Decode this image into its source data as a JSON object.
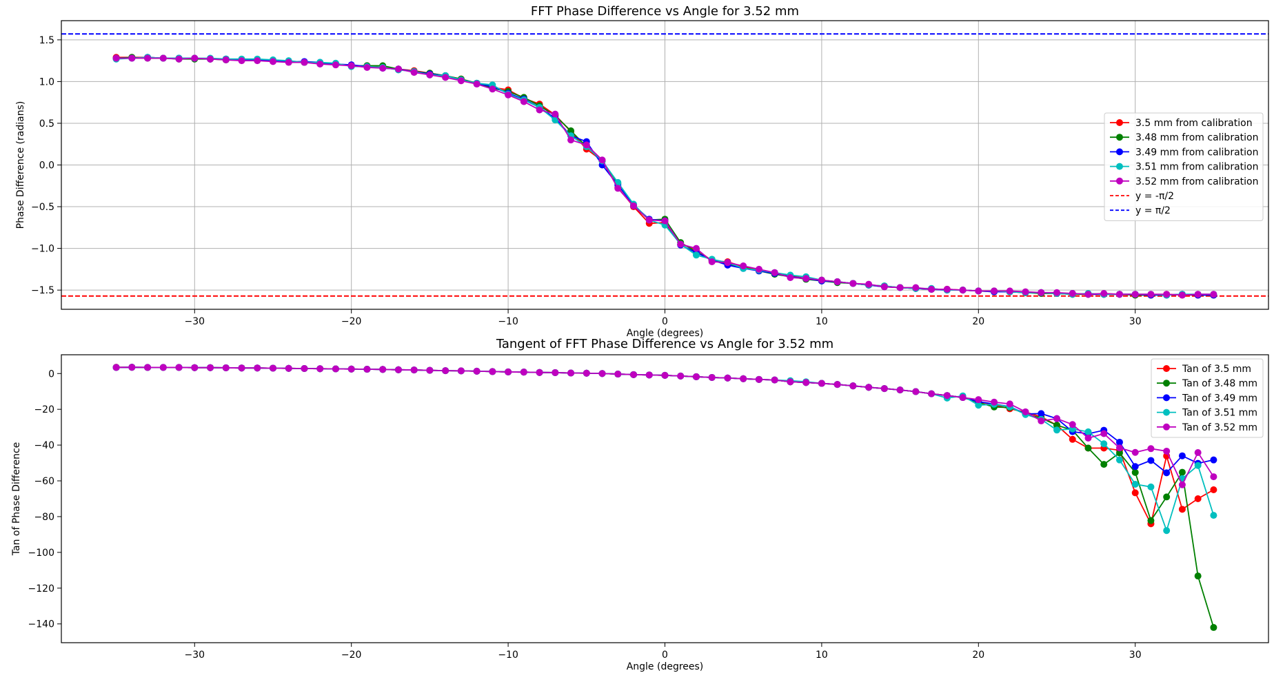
{
  "chart_data": [
    {
      "type": "line",
      "title": "FFT Phase Difference vs Angle for 3.52 mm",
      "xlabel": "Angle (degrees)",
      "ylabel": "Phase Difference (radians)",
      "xlim": [
        -38.5,
        38.5
      ],
      "ylim": [
        -1.73,
        1.73
      ],
      "xticks": [
        -30,
        -20,
        -10,
        0,
        10,
        20,
        30
      ],
      "xtick_labels": [
        "−30",
        "−20",
        "−10",
        "0",
        "10",
        "20",
        "30"
      ],
      "yticks": [
        -1.5,
        -1.0,
        -0.5,
        0.0,
        0.5,
        1.0,
        1.5
      ],
      "ytick_labels": [
        "−1.5",
        "−1.0",
        "−0.5",
        "0.0",
        "0.5",
        "1.0",
        "1.5"
      ],
      "grid": true,
      "legend_position": "center-right",
      "x": [
        -35,
        -34,
        -33,
        -32,
        -31,
        -30,
        -29,
        -28,
        -27,
        -26,
        -25,
        -24,
        -23,
        -22,
        -21,
        -20,
        -19,
        -18,
        -17,
        -16,
        -15,
        -14,
        -13,
        -12,
        -11,
        -10,
        -9,
        -8,
        -7,
        -6,
        -5,
        -4,
        -3,
        -2,
        -1,
        0,
        1,
        2,
        3,
        4,
        5,
        6,
        7,
        8,
        9,
        10,
        11,
        12,
        13,
        14,
        15,
        16,
        17,
        18,
        19,
        20,
        21,
        22,
        23,
        24,
        25,
        26,
        27,
        28,
        29,
        30,
        31,
        32,
        33,
        34,
        35
      ],
      "series": [
        {
          "name": "3.5 mm from calibration",
          "color": "#ff0000",
          "values": [
            1.29,
            1.29,
            1.29,
            1.28,
            1.28,
            1.28,
            1.27,
            1.27,
            1.26,
            1.26,
            1.25,
            1.24,
            1.23,
            1.22,
            1.21,
            1.19,
            1.19,
            1.17,
            1.15,
            1.13,
            1.1,
            1.07,
            1.03,
            0.98,
            0.93,
            0.9,
            0.8,
            0.73,
            0.6,
            0.4,
            0.19,
            0.05,
            -0.27,
            -0.5,
            -0.7,
            -0.69,
            -0.95,
            -1.01,
            -1.15,
            -1.16,
            -1.22,
            -1.26,
            -1.3,
            -1.33,
            -1.36,
            -1.38,
            -1.4,
            -1.42,
            -1.44,
            -1.46,
            -1.47,
            -1.48,
            -1.49,
            -1.49,
            -1.5,
            -1.51,
            -1.51,
            -1.52,
            -1.53,
            -1.53,
            -1.54,
            -1.55,
            -1.55,
            -1.55,
            -1.55,
            -1.56,
            -1.56,
            -1.55,
            -1.56,
            -1.56,
            -1.56
          ]
        },
        {
          "name": "3.48 mm from calibration",
          "color": "#008000",
          "values": [
            1.28,
            1.29,
            1.28,
            1.28,
            1.27,
            1.27,
            1.27,
            1.26,
            1.26,
            1.26,
            1.25,
            1.24,
            1.23,
            1.22,
            1.21,
            1.19,
            1.19,
            1.19,
            1.15,
            1.12,
            1.1,
            1.07,
            1.03,
            0.98,
            0.92,
            0.88,
            0.81,
            0.71,
            0.59,
            0.41,
            0.22,
            0.05,
            -0.22,
            -0.49,
            -0.66,
            -0.65,
            -0.93,
            -1.04,
            -1.14,
            -1.19,
            -1.23,
            -1.27,
            -1.31,
            -1.34,
            -1.37,
            -1.39,
            -1.41,
            -1.42,
            -1.44,
            -1.45,
            -1.47,
            -1.48,
            -1.49,
            -1.5,
            -1.5,
            -1.51,
            -1.52,
            -1.52,
            -1.53,
            -1.54,
            -1.54,
            -1.55,
            -1.55,
            -1.55,
            -1.55,
            -1.56,
            -1.56,
            -1.56,
            -1.55,
            -1.56,
            -1.56
          ]
        },
        {
          "name": "3.49 mm from calibration",
          "color": "#0000ff",
          "values": [
            1.28,
            1.28,
            1.29,
            1.28,
            1.28,
            1.28,
            1.27,
            1.27,
            1.26,
            1.26,
            1.25,
            1.24,
            1.24,
            1.23,
            1.21,
            1.2,
            1.18,
            1.16,
            1.15,
            1.12,
            1.09,
            1.07,
            1.02,
            0.98,
            0.94,
            0.86,
            0.79,
            0.69,
            0.56,
            0.35,
            0.28,
            0.0,
            -0.24,
            -0.48,
            -0.65,
            -0.67,
            -0.96,
            -1.05,
            -1.14,
            -1.2,
            -1.24,
            -1.27,
            -1.3,
            -1.34,
            -1.36,
            -1.39,
            -1.4,
            -1.42,
            -1.44,
            -1.46,
            -1.47,
            -1.48,
            -1.49,
            -1.5,
            -1.5,
            -1.51,
            -1.52,
            -1.52,
            -1.53,
            -1.53,
            -1.54,
            -1.54,
            -1.55,
            -1.55,
            -1.55,
            -1.55,
            -1.56,
            -1.56,
            -1.55,
            -1.56,
            -1.56
          ]
        },
        {
          "name": "3.51 mm from calibration",
          "color": "#00bfbf",
          "values": [
            1.27,
            1.28,
            1.29,
            1.28,
            1.28,
            1.28,
            1.28,
            1.27,
            1.27,
            1.27,
            1.26,
            1.25,
            1.23,
            1.23,
            1.22,
            1.18,
            1.18,
            1.17,
            1.14,
            1.12,
            1.08,
            1.07,
            1.02,
            0.98,
            0.96,
            0.85,
            0.78,
            0.69,
            0.54,
            0.35,
            0.22,
            0.05,
            -0.21,
            -0.47,
            -0.66,
            -0.72,
            -0.95,
            -1.08,
            -1.13,
            -1.17,
            -1.24,
            -1.26,
            -1.29,
            -1.32,
            -1.34,
            -1.38,
            -1.4,
            -1.42,
            -1.44,
            -1.45,
            -1.47,
            -1.48,
            -1.48,
            -1.5,
            -1.5,
            -1.51,
            -1.51,
            -1.52,
            -1.53,
            -1.53,
            -1.54,
            -1.55,
            -1.54,
            -1.55,
            -1.55,
            -1.55,
            -1.55,
            -1.56,
            -1.55,
            -1.55,
            -1.55
          ]
        },
        {
          "name": "3.52 mm from calibration",
          "color": "#bf00bf",
          "values": [
            1.28,
            1.28,
            1.28,
            1.28,
            1.27,
            1.28,
            1.27,
            1.26,
            1.25,
            1.25,
            1.24,
            1.23,
            1.23,
            1.21,
            1.2,
            1.19,
            1.17,
            1.16,
            1.15,
            1.11,
            1.08,
            1.05,
            1.01,
            0.97,
            0.91,
            0.84,
            0.76,
            0.66,
            0.61,
            0.3,
            0.24,
            0.06,
            -0.28,
            -0.49,
            -0.66,
            -0.67,
            -0.95,
            -1.0,
            -1.16,
            -1.17,
            -1.21,
            -1.25,
            -1.29,
            -1.35,
            -1.36,
            -1.38,
            -1.4,
            -1.42,
            -1.43,
            -1.46,
            -1.47,
            -1.47,
            -1.49,
            -1.49,
            -1.5,
            -1.51,
            -1.51,
            -1.51,
            -1.52,
            -1.53,
            -1.53,
            -1.54,
            -1.55,
            -1.54,
            -1.55,
            -1.55,
            -1.55,
            -1.55,
            -1.56,
            -1.55,
            -1.55
          ]
        }
      ],
      "reference_lines": [
        {
          "name": "y = -π/2",
          "y": -1.5708,
          "color": "#ff0000",
          "style": "dashed"
        },
        {
          "name": "y = π/2",
          "y": 1.5708,
          "color": "#0000ff",
          "style": "dashed"
        }
      ]
    },
    {
      "type": "line",
      "title": "Tangent of FFT Phase Difference vs Angle for 3.52 mm",
      "xlabel": "Angle (degrees)",
      "ylabel": "Tan of Phase Difference",
      "xlim": [
        -38.5,
        38.5
      ],
      "ylim": [
        -150.5,
        10.5
      ],
      "xticks": [
        -30,
        -20,
        -10,
        0,
        10,
        20,
        30
      ],
      "xtick_labels": [
        "−30",
        "−20",
        "−10",
        "0",
        "10",
        "20",
        "30"
      ],
      "yticks": [
        -140,
        -120,
        -100,
        -80,
        -60,
        -40,
        -20,
        0
      ],
      "ytick_labels": [
        "−140",
        "−120",
        "−100",
        "−80",
        "−60",
        "−40",
        "−20",
        "0"
      ],
      "grid": false,
      "legend_position": "top-right",
      "x": [
        -35,
        -34,
        -33,
        -32,
        -31,
        -30,
        -29,
        -28,
        -27,
        -26,
        -25,
        -24,
        -23,
        -22,
        -21,
        -20,
        -19,
        -18,
        -17,
        -16,
        -15,
        -14,
        -13,
        -12,
        -11,
        -10,
        -9,
        -8,
        -7,
        -6,
        -5,
        -4,
        -3,
        -2,
        -1,
        0,
        1,
        2,
        3,
        4,
        5,
        6,
        7,
        8,
        9,
        10,
        11,
        12,
        13,
        14,
        15,
        16,
        17,
        18,
        19,
        20,
        21,
        22,
        23,
        24,
        25,
        26,
        27,
        28,
        29,
        30,
        31,
        32,
        33,
        34,
        35
      ],
      "series": [
        {
          "name": "Tan of 3.5 mm",
          "color": "#ff0000",
          "values": [
            3.5,
            3.5,
            3.4,
            3.4,
            3.4,
            3.3,
            3.3,
            3.2,
            3.1,
            3.1,
            3.0,
            2.9,
            2.8,
            2.7,
            2.6,
            2.5,
            2.4,
            2.3,
            2.1,
            2.0,
            1.8,
            1.6,
            1.5,
            1.3,
            1.1,
            0.9,
            0.8,
            0.6,
            0.5,
            0.3,
            0.2,
            0.0,
            -0.3,
            -0.6,
            -0.8,
            -1.0,
            -1.4,
            -1.8,
            -2.2,
            -2.5,
            -2.9,
            -3.3,
            -3.6,
            -4.6,
            -5.0,
            -5.5,
            -6.1,
            -6.9,
            -7.7,
            -8.4,
            -9.2,
            -10.1,
            -11.3,
            -12.3,
            -13.4,
            -15.7,
            -17.5,
            -19.7,
            -21.6,
            -24.2,
            -28.9,
            -36.8,
            -41.7,
            -41.7,
            -42.9,
            -66.7,
            -84.0,
            -46.1,
            -75.9,
            -70.0,
            -65.0
          ]
        },
        {
          "name": "Tan of 3.48 mm",
          "color": "#008000",
          "values": [
            3.4,
            3.5,
            3.4,
            3.4,
            3.4,
            3.3,
            3.3,
            3.2,
            3.1,
            3.1,
            3.0,
            2.9,
            2.8,
            2.7,
            2.6,
            2.5,
            2.4,
            2.3,
            2.1,
            2.0,
            1.8,
            1.6,
            1.5,
            1.3,
            1.1,
            0.9,
            0.8,
            0.6,
            0.5,
            0.3,
            0.2,
            0.0,
            -0.3,
            -0.6,
            -0.8,
            -1.0,
            -1.4,
            -1.8,
            -2.2,
            -2.5,
            -2.9,
            -3.3,
            -3.6,
            -4.6,
            -5.0,
            -5.5,
            -6.1,
            -6.9,
            -7.7,
            -8.4,
            -9.2,
            -10.1,
            -11.3,
            -12.3,
            -13.4,
            -16.2,
            -18.7,
            -19.0,
            -22.6,
            -24.9,
            -28.9,
            -31.7,
            -41.7,
            -50.8,
            -44.4,
            -55.3,
            -82.2,
            -69.0,
            -55.2,
            -113.2,
            -142.0
          ]
        },
        {
          "name": "Tan of 3.49 mm",
          "color": "#0000ff",
          "values": [
            3.4,
            3.5,
            3.4,
            3.4,
            3.4,
            3.3,
            3.3,
            3.2,
            3.1,
            3.1,
            3.0,
            2.9,
            2.8,
            2.7,
            2.6,
            2.5,
            2.4,
            2.3,
            2.1,
            2.0,
            1.8,
            1.6,
            1.5,
            1.3,
            1.1,
            0.9,
            0.8,
            0.6,
            0.5,
            0.3,
            0.2,
            0.0,
            -0.3,
            -0.6,
            -0.8,
            -1.0,
            -1.4,
            -1.8,
            -2.2,
            -2.5,
            -2.9,
            -3.3,
            -3.6,
            -4.6,
            -5.0,
            -5.5,
            -6.1,
            -6.9,
            -7.7,
            -8.4,
            -9.2,
            -10.1,
            -11.3,
            -12.3,
            -13.4,
            -15.7,
            -17.1,
            -18.5,
            -22.6,
            -22.4,
            -25.2,
            -32.5,
            -33.7,
            -31.7,
            -38.4,
            -52.0,
            -48.6,
            -55.5,
            -46.0,
            -50.2,
            -48.3
          ]
        },
        {
          "name": "Tan of 3.51 mm",
          "color": "#00bfbf",
          "values": [
            3.4,
            3.5,
            3.4,
            3.4,
            3.4,
            3.3,
            3.3,
            3.2,
            3.1,
            3.1,
            3.0,
            2.9,
            2.8,
            2.7,
            2.6,
            2.5,
            2.4,
            2.3,
            2.1,
            2.0,
            1.8,
            1.6,
            1.5,
            1.3,
            1.1,
            0.9,
            0.8,
            0.6,
            0.5,
            0.3,
            0.2,
            0.0,
            -0.3,
            -0.6,
            -0.8,
            -1.0,
            -1.4,
            -1.8,
            -2.2,
            -2.5,
            -2.9,
            -3.3,
            -3.6,
            -4.0,
            -4.6,
            -5.5,
            -6.1,
            -6.9,
            -7.7,
            -8.4,
            -9.2,
            -10.1,
            -11.3,
            -13.7,
            -12.5,
            -17.7,
            -17.2,
            -18.6,
            -22.9,
            -25.6,
            -31.6,
            -31.0,
            -32.6,
            -39.3,
            -48.3,
            -61.9,
            -63.4,
            -87.8,
            -58.8,
            -51.4,
            -79.3
          ]
        },
        {
          "name": "Tan of 3.52 mm",
          "color": "#bf00bf",
          "values": [
            3.4,
            3.5,
            3.4,
            3.4,
            3.4,
            3.3,
            3.3,
            3.2,
            3.1,
            3.1,
            3.0,
            2.9,
            2.8,
            2.7,
            2.6,
            2.5,
            2.4,
            2.3,
            2.1,
            2.0,
            1.8,
            1.6,
            1.5,
            1.3,
            1.1,
            0.9,
            0.8,
            0.6,
            0.5,
            0.3,
            0.2,
            0.0,
            -0.3,
            -0.6,
            -0.8,
            -1.0,
            -1.4,
            -1.8,
            -2.2,
            -2.5,
            -2.9,
            -3.3,
            -3.6,
            -4.6,
            -5.0,
            -5.5,
            -6.1,
            -6.9,
            -7.7,
            -8.4,
            -9.2,
            -10.1,
            -11.3,
            -12.3,
            -13.4,
            -14.6,
            -16.0,
            -17.0,
            -21.4,
            -26.5,
            -25.2,
            -28.5,
            -36.1,
            -33.6,
            -41.6,
            -44.1,
            -42.0,
            -43.4,
            -62.2,
            -44.2,
            -57.7
          ]
        }
      ]
    }
  ]
}
